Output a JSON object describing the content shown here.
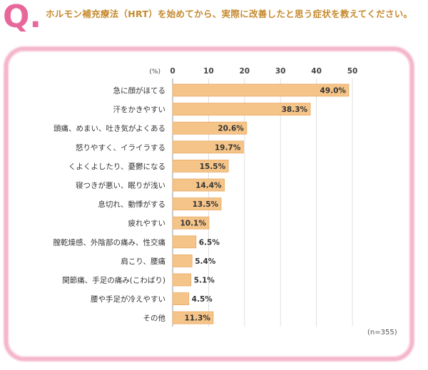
{
  "header": {
    "q_mark": "Q.",
    "question": "ホルモン補充療法（HRT）を始めてから、実際に改善したと思う症状を教えてください。"
  },
  "colors": {
    "accent_pink": "#e8679b",
    "question_text": "#c58a2e",
    "frame_border": "#f4b7cc",
    "bar_fill": "#f5c488",
    "bar_stroke": "#e9a964"
  },
  "chart_data": {
    "type": "bar",
    "orientation": "horizontal",
    "unit_label": "(%)",
    "xlim": [
      0,
      50
    ],
    "ticks": [
      0,
      10,
      20,
      30,
      40,
      50
    ],
    "grid": true,
    "sample_note": "(n=355)",
    "categories": [
      "急に顔がほてる",
      "汗をかきやすい",
      "頭痛、めまい、吐き気がよくある",
      "怒りやすく、イライラする",
      "くよくよしたり、憂鬱になる",
      "寝つきが悪い、眠りが浅い",
      "息切れ、動悸がする",
      "疲れやすい",
      "膣乾燥感、外陰部の痛み、性交痛",
      "肩こり、腰痛",
      "関節痛、手足の痛み(こわばり)",
      "腰や手足が冷えやすい",
      "その他"
    ],
    "values": [
      49.0,
      38.3,
      20.6,
      19.7,
      15.5,
      14.4,
      13.5,
      10.1,
      6.5,
      5.4,
      5.1,
      4.5,
      11.3
    ],
    "value_labels": [
      "49.0%",
      "38.3%",
      "20.6%",
      "19.7%",
      "15.5%",
      "14.4%",
      "13.5%",
      "10.1%",
      "6.5%",
      "5.4%",
      "5.1%",
      "4.5%",
      "11.3%"
    ]
  }
}
